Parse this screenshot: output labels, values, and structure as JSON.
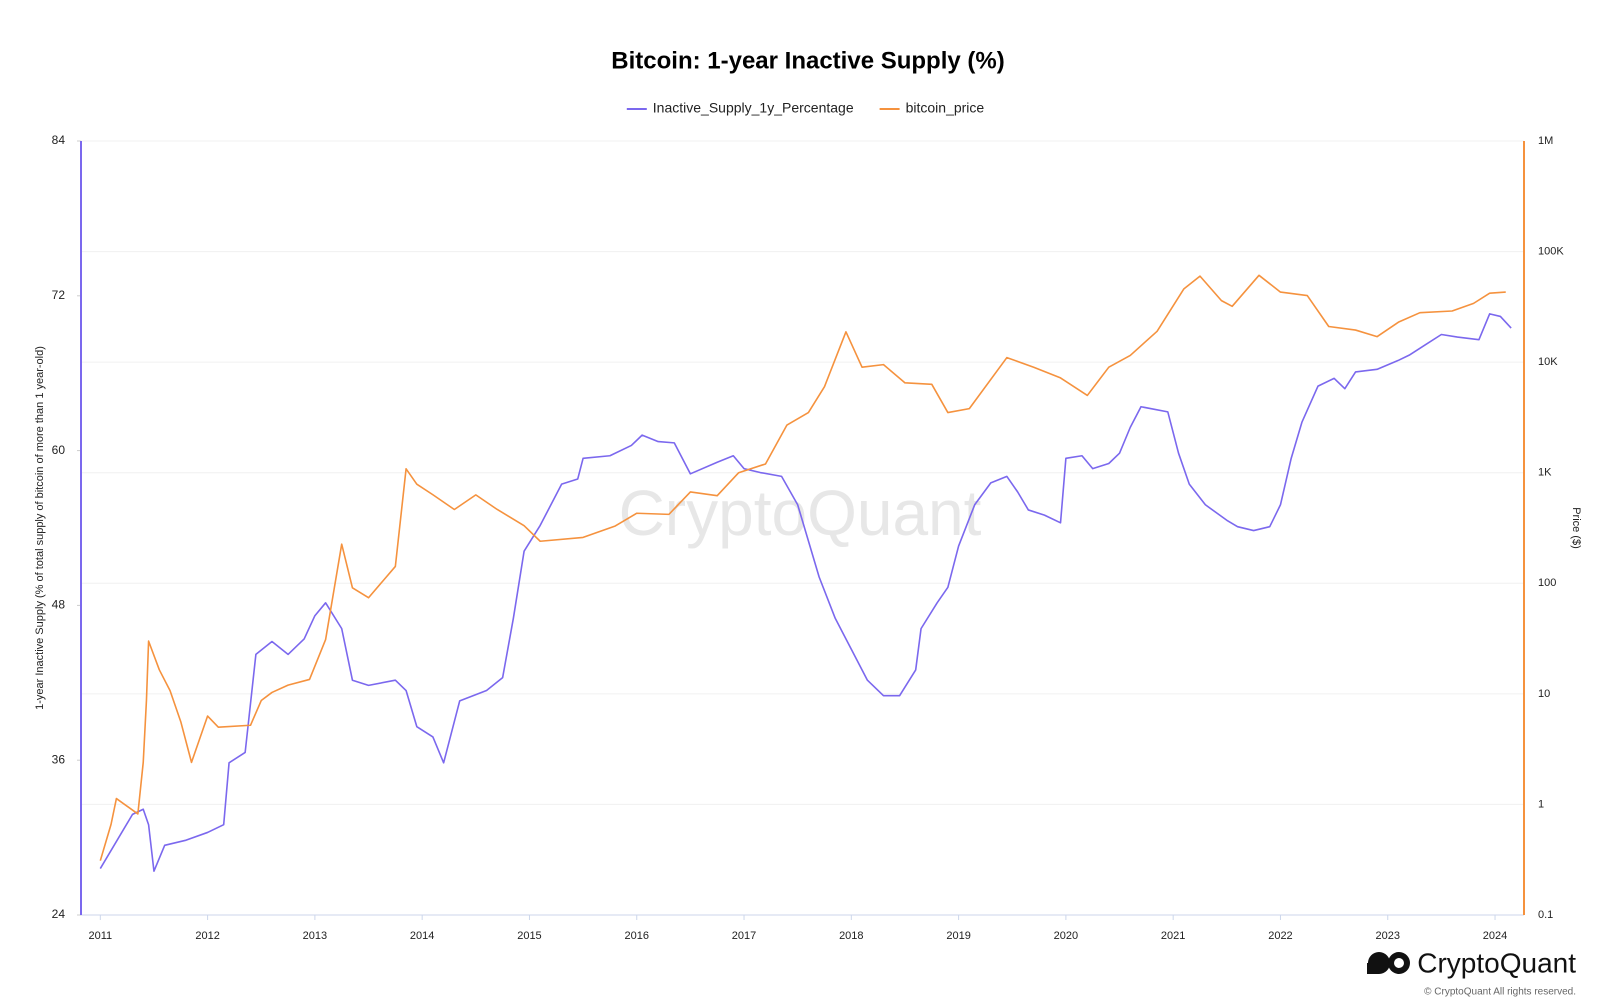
{
  "chart_data": {
    "type": "line",
    "title": "Bitcoin: 1-year Inactive Supply (%)",
    "ylabel": "1-year Inactive Supply (% of total supply of bitcoin of more than 1 year-old)",
    "y2label": "Price ($)",
    "watermark": "CryptoQuant",
    "brand": "CryptoQuant",
    "copyright": "© CryptoQuant All rights reserved.",
    "xlim": [
      2010.82,
      2024.27
    ],
    "xticks": [
      2011,
      2012,
      2013,
      2014,
      2015,
      2016,
      2017,
      2018,
      2019,
      2020,
      2021,
      2022,
      2023,
      2024
    ],
    "ylim": [
      24,
      84
    ],
    "yticks": [
      24,
      36,
      48,
      60,
      72,
      84
    ],
    "y2lim": [
      0.1,
      1000000
    ],
    "y2log": true,
    "y2ticks": [
      0.1,
      1,
      10,
      100,
      {
        "value": 1000,
        "label": "1K"
      },
      {
        "value": 10000,
        "label": "10K"
      },
      {
        "value": 100000,
        "label": "100K"
      },
      {
        "value": 1000000,
        "label": "1M"
      }
    ],
    "grid": "y2",
    "legend": "top",
    "series": [
      {
        "name": "Inactive_Supply_1y_Percentage",
        "color": "#7b68ee",
        "axis": "y",
        "x": [
          2011.0,
          2011.3,
          2011.4,
          2011.45,
          2011.5,
          2011.6,
          2011.8,
          2012.0,
          2012.15,
          2012.2,
          2012.35,
          2012.45,
          2012.6,
          2012.75,
          2012.9,
          2013.0,
          2013.1,
          2013.25,
          2013.35,
          2013.5,
          2013.75,
          2013.85,
          2013.95,
          2014.1,
          2014.2,
          2014.35,
          2014.6,
          2014.75,
          2014.85,
          2014.95,
          2015.1,
          2015.3,
          2015.45,
          2015.5,
          2015.75,
          2015.95,
          2016.05,
          2016.2,
          2016.35,
          2016.5,
          2016.75,
          2016.9,
          2017.0,
          2017.15,
          2017.35,
          2017.5,
          2017.7,
          2017.85,
          2018.0,
          2018.15,
          2018.3,
          2018.45,
          2018.6,
          2018.65,
          2018.8,
          2018.9,
          2019.0,
          2019.15,
          2019.3,
          2019.45,
          2019.55,
          2019.65,
          2019.8,
          2019.95,
          2020.0,
          2020.15,
          2020.25,
          2020.4,
          2020.5,
          2020.6,
          2020.7,
          2020.95,
          2021.05,
          2021.15,
          2021.3,
          2021.5,
          2021.6,
          2021.75,
          2021.9,
          2022.0,
          2022.1,
          2022.2,
          2022.35,
          2022.5,
          2022.6,
          2022.7,
          2022.9,
          2023.1,
          2023.2,
          2023.35,
          2023.5,
          2023.65,
          2023.85,
          2023.95,
          2024.05,
          2024.15
        ],
        "values": [
          27.6,
          31.8,
          32.2,
          31,
          27.4,
          29.4,
          29.8,
          30.4,
          31,
          35.8,
          36.6,
          44.2,
          45.2,
          44.2,
          45.4,
          47.2,
          48.2,
          46.2,
          42.2,
          41.8,
          42.2,
          41.4,
          38.6,
          37.8,
          35.8,
          40.6,
          41.4,
          42.4,
          47,
          52.2,
          54.2,
          57.4,
          57.8,
          59.4,
          59.6,
          60.4,
          61.2,
          60.7,
          60.6,
          58.2,
          59.1,
          59.6,
          58.6,
          58.3,
          58,
          55.8,
          50.2,
          47,
          44.6,
          42.2,
          41,
          41,
          43,
          46.2,
          48.2,
          49.4,
          52.6,
          55.8,
          57.5,
          58,
          56.8,
          55.4,
          55,
          54.4,
          59.4,
          59.6,
          58.6,
          59,
          59.8,
          61.8,
          63.4,
          63,
          59.8,
          57.4,
          55.8,
          54.6,
          54.1,
          53.8,
          54.1,
          55.8,
          59.4,
          62.2,
          65,
          65.6,
          64.8,
          66.1,
          66.3,
          67,
          67.4,
          68.2,
          69,
          68.8,
          68.6,
          70.6,
          70.4,
          69.5
        ]
      },
      {
        "name": "bitcoin_price",
        "color": "#f5923e",
        "axis": "y2",
        "x": [
          2011.0,
          2011.1,
          2011.15,
          2011.35,
          2011.4,
          2011.43,
          2011.45,
          2011.55,
          2011.65,
          2011.75,
          2011.85,
          2012.0,
          2012.1,
          2012.4,
          2012.5,
          2012.6,
          2012.75,
          2012.95,
          2013.1,
          2013.25,
          2013.35,
          2013.5,
          2013.75,
          2013.85,
          2013.95,
          2014.1,
          2014.3,
          2014.5,
          2014.7,
          2014.95,
          2015.1,
          2015.5,
          2015.8,
          2016.0,
          2016.3,
          2016.5,
          2016.75,
          2016.95,
          2017.2,
          2017.4,
          2017.6,
          2017.75,
          2017.95,
          2018.1,
          2018.3,
          2018.5,
          2018.75,
          2018.9,
          2019.1,
          2019.45,
          2019.7,
          2019.95,
          2020.2,
          2020.4,
          2020.6,
          2020.85,
          2021.1,
          2021.25,
          2021.45,
          2021.55,
          2021.8,
          2022.0,
          2022.25,
          2022.45,
          2022.7,
          2022.9,
          2023.1,
          2023.3,
          2023.6,
          2023.8,
          2023.95,
          2024.1
        ],
        "values": [
          0.31,
          0.66,
          1.13,
          0.82,
          2.4,
          8.7,
          30,
          16.5,
          10.7,
          5.6,
          2.4,
          6.3,
          5,
          5.2,
          8.7,
          10.3,
          12,
          13.5,
          31,
          226,
          91,
          74,
          142,
          1084,
          788,
          632,
          465,
          630,
          465,
          332,
          240,
          260,
          330,
          430,
          420,
          670,
          620,
          1000,
          1200,
          2700,
          3500,
          6000,
          18800,
          9000,
          9500,
          6500,
          6300,
          3500,
          3800,
          11000,
          9000,
          7200,
          5000,
          9000,
          11500,
          19000,
          46000,
          60000,
          36000,
          32000,
          61000,
          43000,
          40000,
          21000,
          19500,
          17000,
          23000,
          28000,
          29000,
          34000,
          42000,
          43000
        ]
      }
    ]
  }
}
